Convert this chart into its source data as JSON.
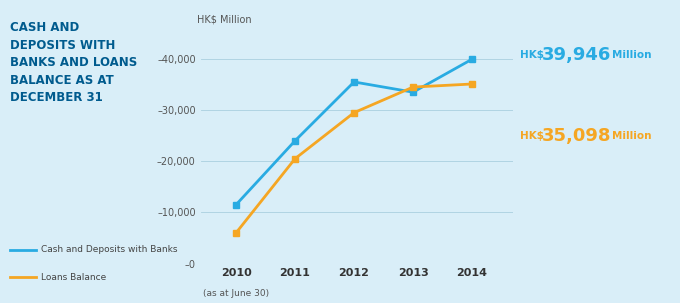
{
  "years": [
    2010,
    2011,
    2012,
    2013,
    2014
  ],
  "blue_values": [
    11500,
    24000,
    35500,
    33500,
    39946
  ],
  "orange_values": [
    6000,
    20500,
    29500,
    34500,
    35098
  ],
  "blue_color": "#29ABE2",
  "orange_color": "#F5A623",
  "background_color": "#D9EEF8",
  "title_color": "#005B8E",
  "title_text": "CASH AND\nDEPOSITS WITH\nBANKS AND LOANS\nBALANCE AS AT\nDECEMBER 31",
  "ylabel": "HK$ Million",
  "ylim": [
    0,
    45000
  ],
  "yticks": [
    0,
    10000,
    20000,
    30000,
    40000
  ],
  "ytick_labels": [
    "–0",
    "–10,000",
    "–20,000",
    "–30,000",
    "–40,000"
  ],
  "legend_blue": "Cash and Deposits with Banks",
  "legend_orange": "Loans Balance",
  "xlabel_2010_note": "(as at June 30)",
  "annot_blue_prefix": "HK$",
  "annot_blue_number": "39,946",
  "annot_blue_suffix": "Million",
  "annot_orange_prefix": "HK$",
  "annot_orange_number": "35,098",
  "annot_orange_suffix": "Million"
}
